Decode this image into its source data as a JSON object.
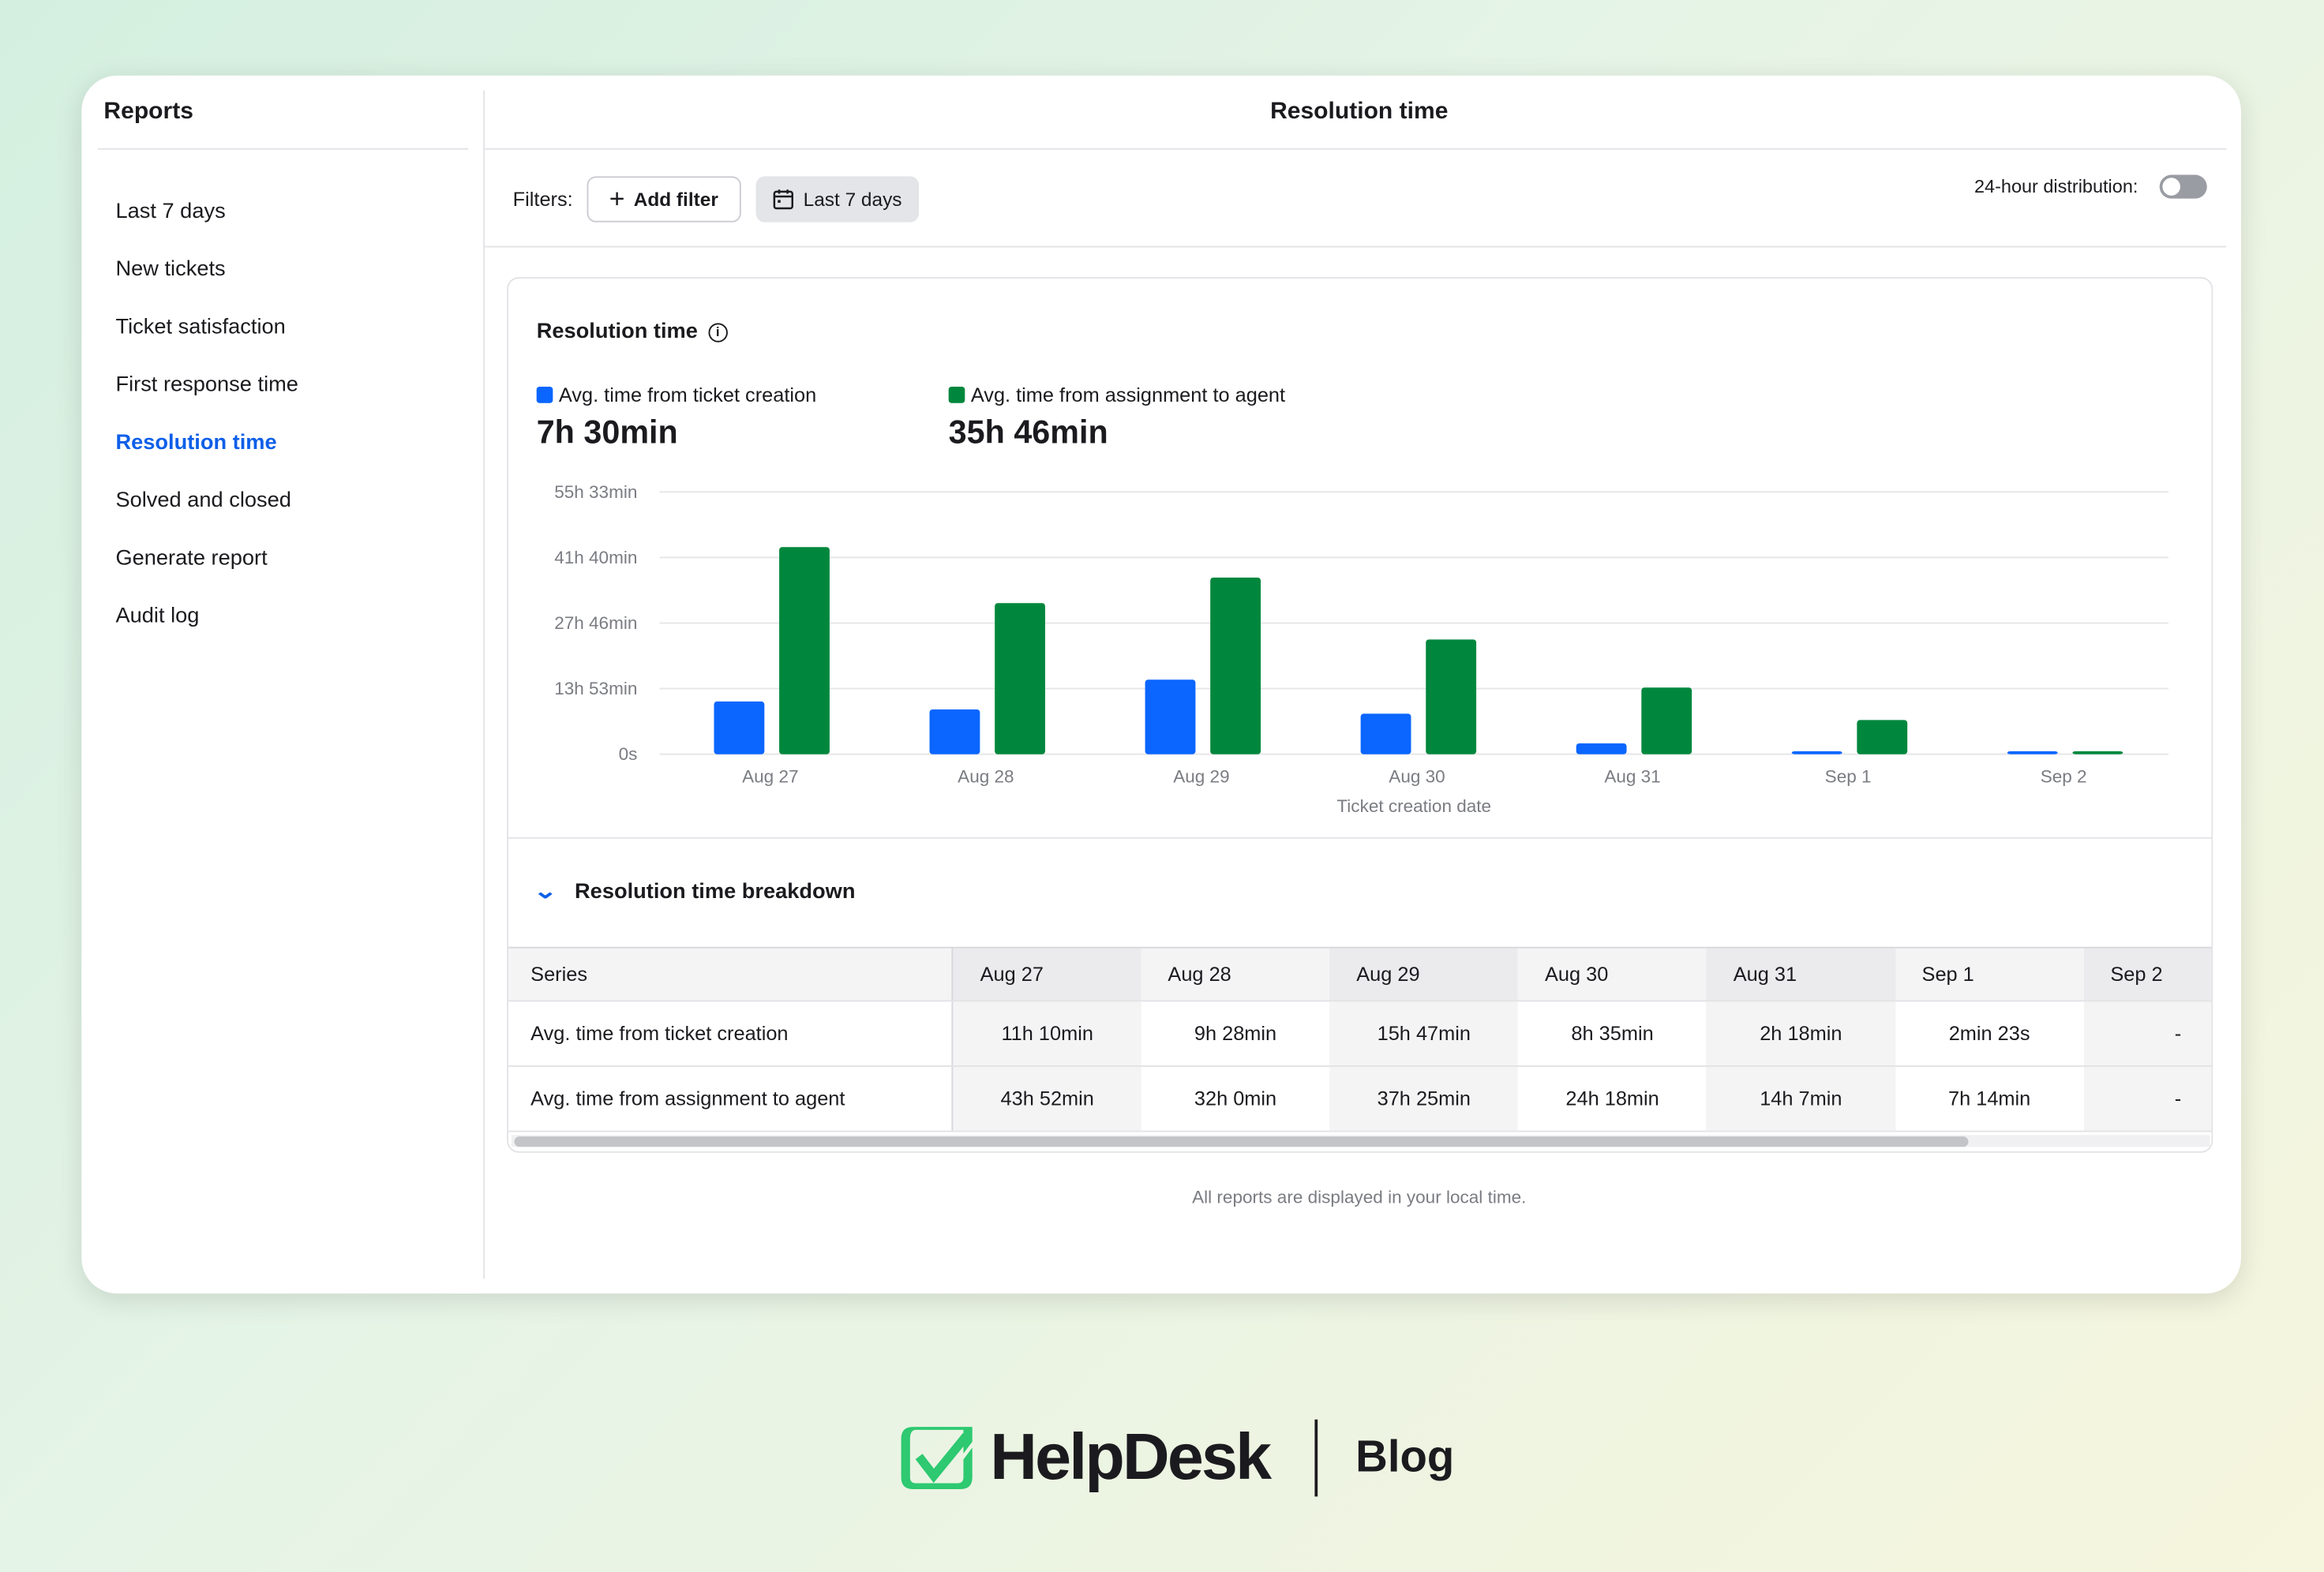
{
  "sidebar": {
    "title": "Reports",
    "items": [
      {
        "label": "Last 7 days",
        "active": false
      },
      {
        "label": "New tickets",
        "active": false
      },
      {
        "label": "Ticket satisfaction",
        "active": false
      },
      {
        "label": "First response time",
        "active": false
      },
      {
        "label": "Resolution time",
        "active": true
      },
      {
        "label": "Solved and closed",
        "active": false
      },
      {
        "label": "Generate report",
        "active": false
      },
      {
        "label": "Audit log",
        "active": false
      }
    ]
  },
  "header": {
    "title": "Resolution time"
  },
  "filters": {
    "label": "Filters:",
    "add_filter": "Add filter",
    "date_range": "Last 7 days",
    "toggle_label": "24-hour distribution:",
    "toggle_on": false
  },
  "panel": {
    "title": "Resolution time",
    "summary": [
      {
        "label": "Avg. time from ticket creation",
        "value": "7h 30min",
        "color": "#0a66ff"
      },
      {
        "label": "Avg. time from assignment to agent",
        "value": "35h 46min",
        "color": "#00873d"
      }
    ]
  },
  "chart_data": {
    "type": "bar",
    "xlabel": "Ticket creation date",
    "ylabel": "",
    "categories": [
      "Aug 27",
      "Aug 28",
      "Aug 29",
      "Aug 30",
      "Aug 31",
      "Sep 1",
      "Sep 2"
    ],
    "y_ticks": [
      "0s",
      "13h 53min",
      "27h 46min",
      "41h 40min",
      "55h 33min"
    ],
    "ylim_hours": [
      0,
      55.55
    ],
    "grid": true,
    "series": [
      {
        "name": "Avg. time from ticket creation",
        "color": "#0a66ff",
        "values_hours": [
          11.167,
          9.467,
          15.783,
          8.583,
          2.3,
          0.04,
          0
        ]
      },
      {
        "name": "Avg. time from assignment to agent",
        "color": "#00873d",
        "values_hours": [
          43.867,
          32.0,
          37.417,
          24.3,
          14.117,
          7.233,
          0
        ]
      }
    ]
  },
  "breakdown": {
    "title": "Resolution time breakdown",
    "columns": [
      "Series",
      "Aug 27",
      "Aug 28",
      "Aug 29",
      "Aug 30",
      "Aug 31",
      "Sep 1",
      "Sep 2"
    ],
    "rows": [
      [
        "Avg. time from ticket creation",
        "11h 10min",
        "9h 28min",
        "15h 47min",
        "8h 35min",
        "2h 18min",
        "2min 23s",
        "-"
      ],
      [
        "Avg. time from assignment to agent",
        "43h 52min",
        "32h 0min",
        "37h 25min",
        "24h 18min",
        "14h 7min",
        "7h 14min",
        "-"
      ]
    ]
  },
  "footer_note": "All reports are displayed in your local time.",
  "branding": {
    "logo": "HelpDesk",
    "section": "Blog",
    "logo_color": "#2ec971"
  }
}
